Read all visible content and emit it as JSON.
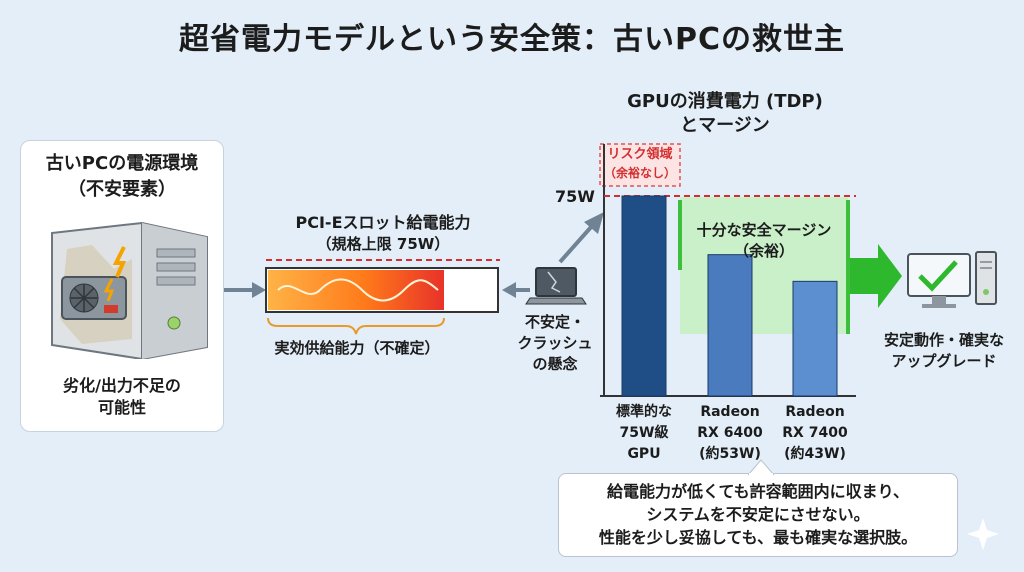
{
  "title": "超省電力モデルという安全策：古いPCの救世主",
  "left_panel": {
    "title_line1": "古いPCの電源環境",
    "title_line2": "（不安要素）",
    "caption_line1": "劣化/出力不足の",
    "caption_line2": "可能性"
  },
  "pcie": {
    "title_line1": "PCI-Eスロット給電能力",
    "title_line2": "（規格上限 75W）",
    "effective_label": "実効供給能力（不確定）"
  },
  "laptop": {
    "line1": "不安定・",
    "line2": "クラッシュ",
    "line3": "の懸念"
  },
  "gpu_chart": {
    "title_line1": "GPUの消費電力 (TDP)",
    "title_line2": "とマージン",
    "risk_line1": "リスク領域",
    "risk_line2": "（余裕なし）",
    "limit_label": "75W",
    "margin_line1": "十分な安全マージン",
    "margin_line2": "（余裕）"
  },
  "chart_data": {
    "type": "bar",
    "categories": [
      [
        "標準的な",
        "75W級",
        "GPU"
      ],
      [
        "Radeon",
        "RX 6400",
        "(約53W)"
      ],
      [
        "Radeon",
        "RX 7400",
        "(約43W)"
      ]
    ],
    "values": [
      75,
      53,
      43
    ],
    "reference_line": 75,
    "colors": [
      "#1f4e87",
      "#4a7bbf",
      "#5b8fd0"
    ]
  },
  "right": {
    "line1": "安定動作・確実な",
    "line2": "アップグレード"
  },
  "callout": {
    "line1": "給電能力が低くても許容範囲内に収まり、",
    "line2": "システムを不安定にさせない。",
    "line3": "性能を少し妥協しても、最も確実な選択肢。"
  },
  "colors": {
    "background": "#e3eef8",
    "limit_line": "#d32f2f",
    "margin_fill": "#c7efc3",
    "margin_border": "#3cc03c",
    "arrow_gray": "#6f8394",
    "accent_green": "#2eb82e"
  }
}
